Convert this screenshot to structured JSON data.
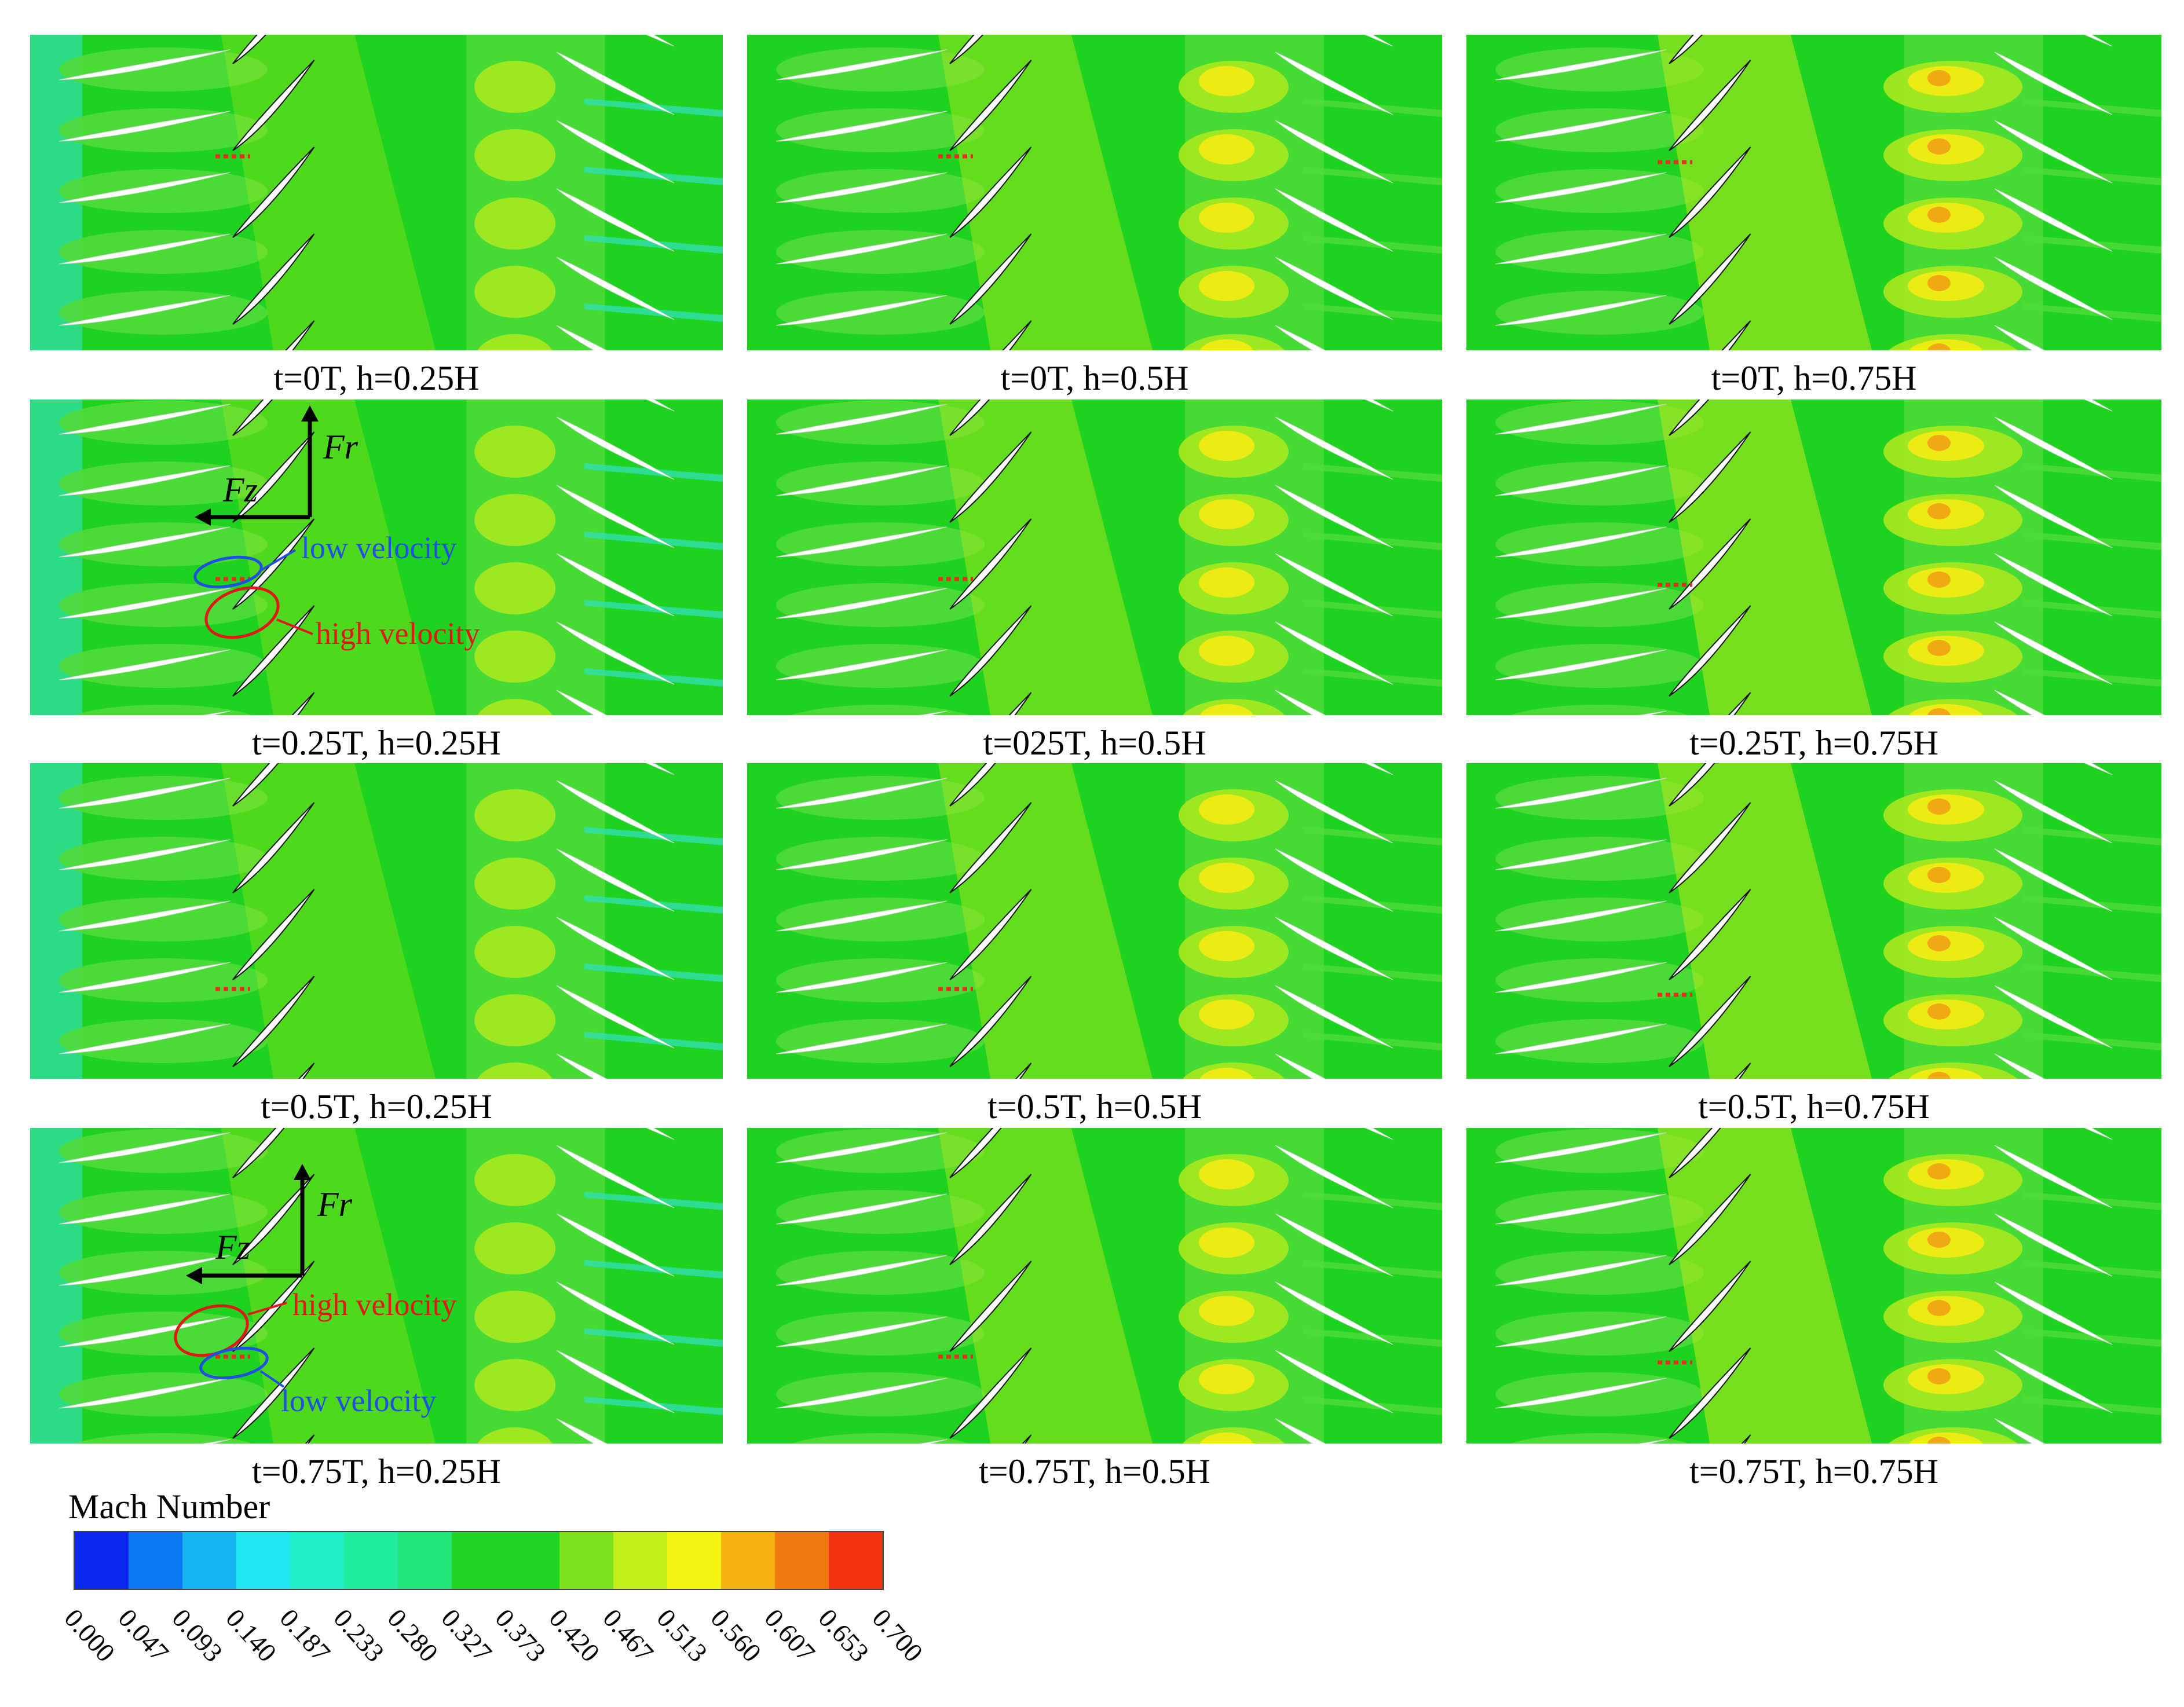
{
  "panels": [
    {
      "caption": "t=0T, h=0.25H",
      "row": 0,
      "col": 0
    },
    {
      "caption": "t=0T, h=0.5H",
      "row": 0,
      "col": 1
    },
    {
      "caption": "t=0T, h=0.75H",
      "row": 0,
      "col": 2
    },
    {
      "caption": "t=0.25T, h=0.25H",
      "row": 1,
      "col": 0
    },
    {
      "caption": "t=025T, h=0.5H",
      "row": 1,
      "col": 1
    },
    {
      "caption": "t=0.25T, h=0.75H",
      "row": 1,
      "col": 2
    },
    {
      "caption": "t=0.5T, h=0.25H",
      "row": 2,
      "col": 0
    },
    {
      "caption": "t=0.5T, h=0.5H",
      "row": 2,
      "col": 1
    },
    {
      "caption": "t=0.5T, h=0.75H",
      "row": 2,
      "col": 2
    },
    {
      "caption": "t=0.75T, h=0.25H",
      "row": 3,
      "col": 0
    },
    {
      "caption": "t=0.75T, h=0.5H",
      "row": 3,
      "col": 1
    },
    {
      "caption": "t=0.75T, h=0.75H",
      "row": 3,
      "col": 2
    }
  ],
  "annotations": {
    "panel_025T": {
      "fr": "Fr",
      "fz": "Fz",
      "low": "low velocity",
      "high": "high velocity"
    },
    "panel_075T": {
      "fr": "Fr",
      "fz": "Fz",
      "low": "low velocity",
      "high": "high velocity"
    }
  },
  "colorbar": {
    "title": "Mach Number",
    "ticks": [
      "0.000",
      "0.047",
      "0.093",
      "0.140",
      "0.187",
      "0.233",
      "0.280",
      "0.327",
      "0.373",
      "0.420",
      "0.467",
      "0.513",
      "0.560",
      "0.607",
      "0.653",
      "0.700"
    ],
    "colors": [
      "#0a28f0",
      "#0a7af5",
      "#18b4f2",
      "#20e6f2",
      "#20f0c8",
      "#20eca0",
      "#22e678",
      "#22d422",
      "#22d422",
      "#7fe01e",
      "#c4ee18",
      "#f4f410",
      "#f5b210",
      "#f27810",
      "#f23210"
    ]
  },
  "colors": {
    "field_green": "#1fd21f",
    "field_light_green": "#50dc3a",
    "field_yellowgreen": "#a8e81e",
    "field_yellow": "#ecec14",
    "field_orange": "#f0a814",
    "wake_cyan": "#30e0b0",
    "marker_red": "#e03020",
    "annotation_blue": "#2050e0",
    "annotation_red": "#e01818"
  }
}
